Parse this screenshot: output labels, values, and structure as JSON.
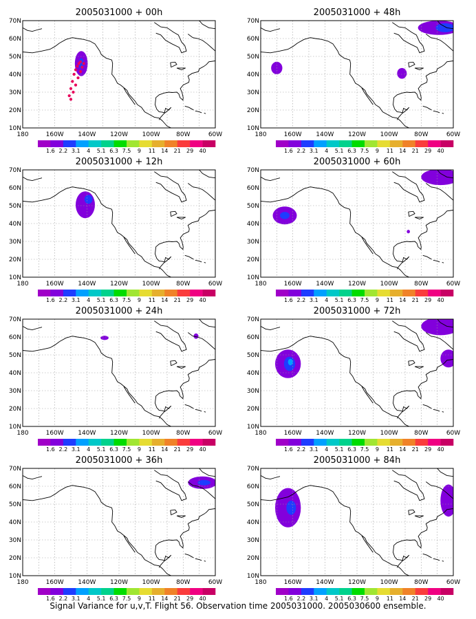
{
  "caption": "Signal Variance for u,v,T. Flight 56. Observation time 2005031000. 2005030600 ensemble.",
  "colors": {
    "frame": "#000000",
    "grid": "#9a9a9a",
    "coast": "#000000",
    "track": "#e8005a"
  },
  "chart_data": [
    {
      "type": "heatmap",
      "title": "2005031000 + 00h",
      "lead_hours": 0,
      "x_ticks": [
        "180",
        "160W",
        "140W",
        "120W",
        "100W",
        "80W",
        "60W"
      ],
      "y_ticks": [
        "10N",
        "20N",
        "30N",
        "40N",
        "50N",
        "60N",
        "70N"
      ],
      "lon_range": [
        180,
        300
      ],
      "lat_range": [
        10,
        70
      ],
      "colorbar": [
        1.6,
        2.2,
        3.1,
        4,
        5.1,
        6.3,
        7.5,
        9,
        11,
        14,
        21,
        29,
        40
      ],
      "features": [
        {
          "lon_c": 216.5,
          "lat_c": 46,
          "lon_r": 4,
          "lat_r": 7,
          "level": 1
        },
        {
          "lon_c": 216.5,
          "lat_c": 46,
          "lon_r": 1.5,
          "lat_r": 3,
          "level": 2
        }
      ],
      "track": [
        [
          [
            209,
            28
          ],
          [
            210,
            32
          ],
          [
            211,
            36
          ],
          [
            212,
            40
          ],
          [
            213,
            42.5
          ],
          [
            214,
            44.5
          ],
          [
            215,
            46
          ],
          [
            216,
            47
          ]
        ],
        [
          [
            210,
            26
          ],
          [
            211.5,
            30
          ],
          [
            213,
            34
          ],
          [
            214.5,
            38
          ],
          [
            216,
            41.5
          ],
          [
            217,
            44
          ],
          [
            218,
            46
          ]
        ]
      ]
    },
    {
      "type": "heatmap",
      "title": "2005031000 + 48h",
      "lead_hours": 48,
      "x_ticks": [
        "180",
        "160W",
        "140W",
        "120W",
        "100W",
        "80W",
        "60W"
      ],
      "y_ticks": [
        "10N",
        "20N",
        "30N",
        "40N",
        "50N",
        "60N",
        "70N"
      ],
      "lon_range": [
        180,
        300
      ],
      "lat_range": [
        10,
        70
      ],
      "colorbar": [
        1.6,
        2.2,
        3.1,
        4,
        5.1,
        6.3,
        7.5,
        9,
        11,
        14,
        21,
        29,
        40
      ],
      "features": [
        {
          "lon_c": 190,
          "lat_c": 43.5,
          "lon_r": 3.5,
          "lat_r": 3.5,
          "level": 1
        },
        {
          "lon_c": 268,
          "lat_c": 40.5,
          "lon_r": 3,
          "lat_r": 3,
          "level": 1
        },
        {
          "lon_c": 291,
          "lat_c": 66,
          "lon_r": 13,
          "lat_r": 4,
          "level": 1
        },
        {
          "lon_c": 295,
          "lat_c": 66,
          "lon_r": 6,
          "lat_r": 2.5,
          "level": 2
        }
      ],
      "track": []
    },
    {
      "type": "heatmap",
      "title": "2005031000 + 12h",
      "lead_hours": 12,
      "x_ticks": [
        "180",
        "160W",
        "140W",
        "120W",
        "100W",
        "80W",
        "60W"
      ],
      "y_ticks": [
        "10N",
        "20N",
        "30N",
        "40N",
        "50N",
        "60N",
        "70N"
      ],
      "lon_range": [
        180,
        300
      ],
      "lat_range": [
        10,
        70
      ],
      "colorbar": [
        1.6,
        2.2,
        3.1,
        4,
        5.1,
        6.3,
        7.5,
        9,
        11,
        14,
        21,
        29,
        40
      ],
      "features": [
        {
          "lon_c": 219,
          "lat_c": 50.5,
          "lon_r": 6,
          "lat_r": 7.5,
          "level": 1
        },
        {
          "lon_c": 221,
          "lat_c": 53.5,
          "lon_r": 2.5,
          "lat_r": 2.5,
          "level": 2
        }
      ],
      "track": []
    },
    {
      "type": "heatmap",
      "title": "2005031000 + 60h",
      "lead_hours": 60,
      "x_ticks": [
        "180",
        "160W",
        "140W",
        "120W",
        "100W",
        "80W",
        "60W"
      ],
      "y_ticks": [
        "10N",
        "20N",
        "30N",
        "40N",
        "50N",
        "60N",
        "70N"
      ],
      "lon_range": [
        180,
        300
      ],
      "lat_range": [
        10,
        70
      ],
      "colorbar": [
        1.6,
        2.2,
        3.1,
        4,
        5.1,
        6.3,
        7.5,
        9,
        11,
        14,
        21,
        29,
        40
      ],
      "features": [
        {
          "lon_c": 195,
          "lat_c": 44.5,
          "lon_r": 7.5,
          "lat_r": 5,
          "level": 1
        },
        {
          "lon_c": 195,
          "lat_c": 44.5,
          "lon_r": 3,
          "lat_r": 2,
          "level": 2
        },
        {
          "lon_c": 272,
          "lat_c": 35.5,
          "lon_r": 1,
          "lat_r": 1,
          "level": 1
        },
        {
          "lon_c": 292,
          "lat_c": 66,
          "lon_r": 12,
          "lat_r": 4.5,
          "level": 1
        }
      ],
      "track": []
    },
    {
      "type": "heatmap",
      "title": "2005031000 + 24h",
      "lead_hours": 24,
      "x_ticks": [
        "180",
        "160W",
        "140W",
        "120W",
        "100W",
        "80W",
        "60W"
      ],
      "y_ticks": [
        "10N",
        "20N",
        "30N",
        "40N",
        "50N",
        "60N",
        "70N"
      ],
      "lon_range": [
        180,
        300
      ],
      "lat_range": [
        10,
        70
      ],
      "colorbar": [
        1.6,
        2.2,
        3.1,
        4,
        5.1,
        6.3,
        7.5,
        9,
        11,
        14,
        21,
        29,
        40
      ],
      "features": [
        {
          "lon_c": 231,
          "lat_c": 59.5,
          "lon_r": 2.5,
          "lat_r": 1.2,
          "level": 1
        },
        {
          "lon_c": 288,
          "lat_c": 60.5,
          "lon_r": 1.5,
          "lat_r": 1.5,
          "level": 1
        }
      ],
      "track": []
    },
    {
      "type": "heatmap",
      "title": "2005031000 + 72h",
      "lead_hours": 72,
      "x_ticks": [
        "180",
        "160W",
        "140W",
        "120W",
        "100W",
        "80W",
        "60W"
      ],
      "y_ticks": [
        "10N",
        "20N",
        "30N",
        "40N",
        "50N",
        "60N",
        "70N"
      ],
      "lon_range": [
        180,
        300
      ],
      "lat_range": [
        10,
        70
      ],
      "colorbar": [
        1.6,
        2.2,
        3.1,
        4,
        5.1,
        6.3,
        7.5,
        9,
        11,
        14,
        21,
        29,
        40
      ],
      "features": [
        {
          "lon_c": 197,
          "lat_c": 45,
          "lon_r": 8,
          "lat_r": 8,
          "level": 1
        },
        {
          "lon_c": 198,
          "lat_c": 45,
          "lon_r": 3.5,
          "lat_r": 4,
          "level": 2
        },
        {
          "lon_c": 198.5,
          "lat_c": 46,
          "lon_r": 1.5,
          "lat_r": 1.8,
          "level": 3
        },
        {
          "lon_c": 292,
          "lat_c": 66,
          "lon_r": 12,
          "lat_r": 5,
          "level": 1
        },
        {
          "lon_c": 297,
          "lat_c": 48,
          "lon_r": 5,
          "lat_r": 5,
          "level": 1
        }
      ],
      "track": []
    },
    {
      "type": "heatmap",
      "title": "2005031000 + 36h",
      "lead_hours": 36,
      "x_ticks": [
        "180",
        "160W",
        "140W",
        "120W",
        "100W",
        "80W",
        "60W"
      ],
      "y_ticks": [
        "10N",
        "20N",
        "30N",
        "40N",
        "50N",
        "60N",
        "70N"
      ],
      "lon_range": [
        180,
        300
      ],
      "lat_range": [
        10,
        70
      ],
      "colorbar": [
        1.6,
        2.2,
        3.1,
        4,
        5.1,
        6.3,
        7.5,
        9,
        11,
        14,
        21,
        29,
        40
      ],
      "features": [
        {
          "lon_c": 292,
          "lat_c": 62,
          "lon_r": 9,
          "lat_r": 3.5,
          "level": 1
        },
        {
          "lon_c": 293,
          "lat_c": 62,
          "lon_r": 4,
          "lat_r": 1.5,
          "level": 2
        }
      ],
      "track": []
    },
    {
      "type": "heatmap",
      "title": "2005031000 + 84h",
      "lead_hours": 84,
      "x_ticks": [
        "180",
        "160W",
        "140W",
        "120W",
        "100W",
        "80W",
        "60W"
      ],
      "y_ticks": [
        "10N",
        "20N",
        "30N",
        "40N",
        "50N",
        "60N",
        "70N"
      ],
      "lon_range": [
        180,
        300
      ],
      "lat_range": [
        10,
        70
      ],
      "colorbar": [
        1.6,
        2.2,
        3.1,
        4,
        5.1,
        6.3,
        7.5,
        9,
        11,
        14,
        21,
        29,
        40
      ],
      "features": [
        {
          "lon_c": 197,
          "lat_c": 48,
          "lon_r": 8,
          "lat_r": 11,
          "level": 1
        },
        {
          "lon_c": 199,
          "lat_c": 48,
          "lon_r": 3,
          "lat_r": 4,
          "level": 2
        },
        {
          "lon_c": 297,
          "lat_c": 52,
          "lon_r": 5,
          "lat_r": 9,
          "level": 1
        }
      ],
      "track": []
    }
  ],
  "colorbar_colors": [
    "#a000c8",
    "#8200dc",
    "#1e3cff",
    "#00a0ff",
    "#00c8c8",
    "#00d28c",
    "#00dc00",
    "#a0e632",
    "#e6dc32",
    "#e6af2d",
    "#f08228",
    "#fa3c3c",
    "#f00082",
    "#c80064"
  ]
}
